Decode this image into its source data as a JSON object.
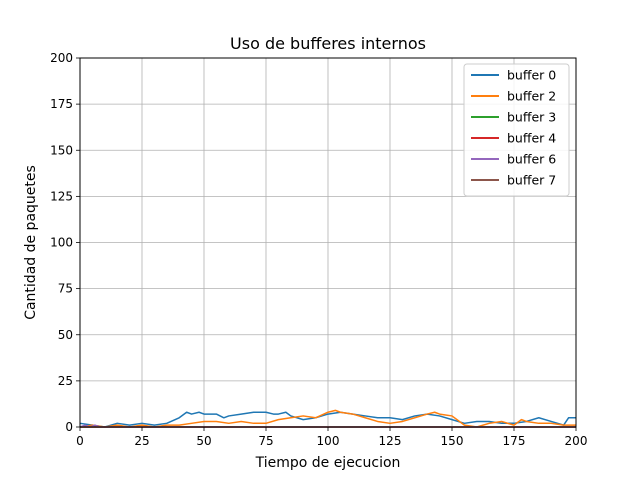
{
  "chart_data": {
    "type": "line",
    "title": "Uso de bufferes internos",
    "xlabel": "Tiempo de ejecucion",
    "ylabel": "Cantidad de paquetes",
    "xlim": [
      0,
      200
    ],
    "ylim": [
      0,
      200
    ],
    "xticks": [
      "0",
      "25",
      "50",
      "75",
      "100",
      "125",
      "150",
      "175",
      "200"
    ],
    "yticks": [
      "0",
      "25",
      "50",
      "75",
      "100",
      "125",
      "150",
      "175",
      "200"
    ],
    "grid": true,
    "legend_position": "top-right",
    "series": [
      {
        "name": "buffer 0",
        "color": "#1f77b4",
        "x": [
          0,
          5,
          10,
          15,
          20,
          25,
          30,
          35,
          40,
          43,
          45,
          48,
          50,
          55,
          58,
          60,
          65,
          70,
          75,
          78,
          80,
          83,
          85,
          90,
          95,
          100,
          105,
          110,
          115,
          120,
          125,
          130,
          135,
          140,
          145,
          150,
          155,
          160,
          165,
          170,
          175,
          180,
          185,
          190,
          195,
          197,
          200
        ],
        "y": [
          2,
          1,
          0,
          2,
          1,
          2,
          1,
          2,
          5,
          8,
          7,
          8,
          7,
          7,
          5,
          6,
          7,
          8,
          8,
          7,
          7,
          8,
          6,
          4,
          5,
          7,
          8,
          7,
          6,
          5,
          5,
          4,
          6,
          7,
          6,
          4,
          2,
          3,
          3,
          2,
          2,
          3,
          5,
          3,
          1,
          5,
          5
        ]
      },
      {
        "name": "buffer 2",
        "color": "#ff7f0e",
        "x": [
          0,
          5,
          10,
          15,
          20,
          25,
          30,
          35,
          40,
          45,
          50,
          55,
          60,
          65,
          70,
          75,
          80,
          85,
          90,
          95,
          100,
          103,
          105,
          110,
          115,
          120,
          125,
          130,
          135,
          140,
          143,
          145,
          150,
          155,
          160,
          165,
          170,
          175,
          178,
          180,
          185,
          190,
          195,
          200
        ],
        "y": [
          0,
          1,
          0,
          1,
          0,
          1,
          0,
          1,
          1,
          2,
          3,
          3,
          2,
          3,
          2,
          2,
          4,
          5,
          6,
          5,
          8,
          9,
          8,
          7,
          5,
          3,
          2,
          3,
          5,
          7,
          8,
          7,
          6,
          1,
          0,
          2,
          3,
          1,
          4,
          3,
          2,
          2,
          1,
          1
        ]
      },
      {
        "name": "buffer 3",
        "color": "#2ca02c",
        "x": [
          0,
          50,
          100,
          150,
          200
        ],
        "y": [
          0,
          0,
          0,
          0,
          0
        ]
      },
      {
        "name": "buffer 4",
        "color": "#d62728",
        "x": [
          0,
          50,
          100,
          150,
          200
        ],
        "y": [
          0,
          0,
          0,
          0,
          0
        ]
      },
      {
        "name": "buffer 6",
        "color": "#9467bd",
        "x": [
          0,
          2,
          4,
          6,
          8,
          10,
          50,
          100,
          150,
          200
        ],
        "y": [
          0,
          1,
          0,
          1,
          0,
          0,
          0,
          0,
          0,
          0
        ]
      },
      {
        "name": "buffer 7",
        "color": "#8c564b",
        "x": [
          0,
          50,
          100,
          150,
          200
        ],
        "y": [
          0,
          0,
          0,
          0,
          0
        ]
      }
    ]
  }
}
